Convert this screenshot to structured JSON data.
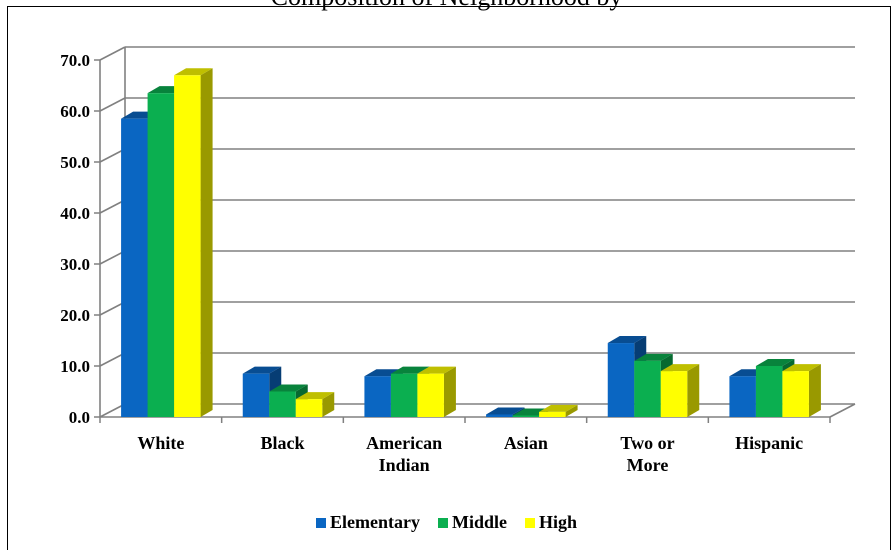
{
  "chart_data": {
    "type": "bar",
    "title": "",
    "title_partial_visible": "Composition of Neighborhood by",
    "categories": [
      "White",
      "Black",
      "American Indian",
      "Asian",
      "Two or More",
      "Hispanic"
    ],
    "category_lines": [
      [
        "White"
      ],
      [
        "Black"
      ],
      [
        "American",
        "Indian"
      ],
      [
        "Asian"
      ],
      [
        "Two or",
        "More"
      ],
      [
        "Hispanic"
      ]
    ],
    "series": [
      {
        "name": "Elementary",
        "color": "#0A66C2",
        "values": [
          58.5,
          8.5,
          8.0,
          0.5,
          14.5,
          8.0
        ]
      },
      {
        "name": "Middle",
        "color": "#0BAF50",
        "values": [
          63.5,
          5.0,
          8.5,
          0.3,
          11.0,
          10.0
        ]
      },
      {
        "name": "High",
        "color": "#FFFF00",
        "values": [
          67.0,
          3.5,
          8.5,
          1.0,
          9.0,
          9.0
        ]
      }
    ],
    "ylim": [
      0,
      70
    ],
    "yticks": [
      "0.0",
      "10.0",
      "20.0",
      "30.0",
      "40.0",
      "50.0",
      "60.0",
      "70.0"
    ],
    "grid": true,
    "legend_position": "bottom",
    "style": "3d-clustered-column"
  }
}
